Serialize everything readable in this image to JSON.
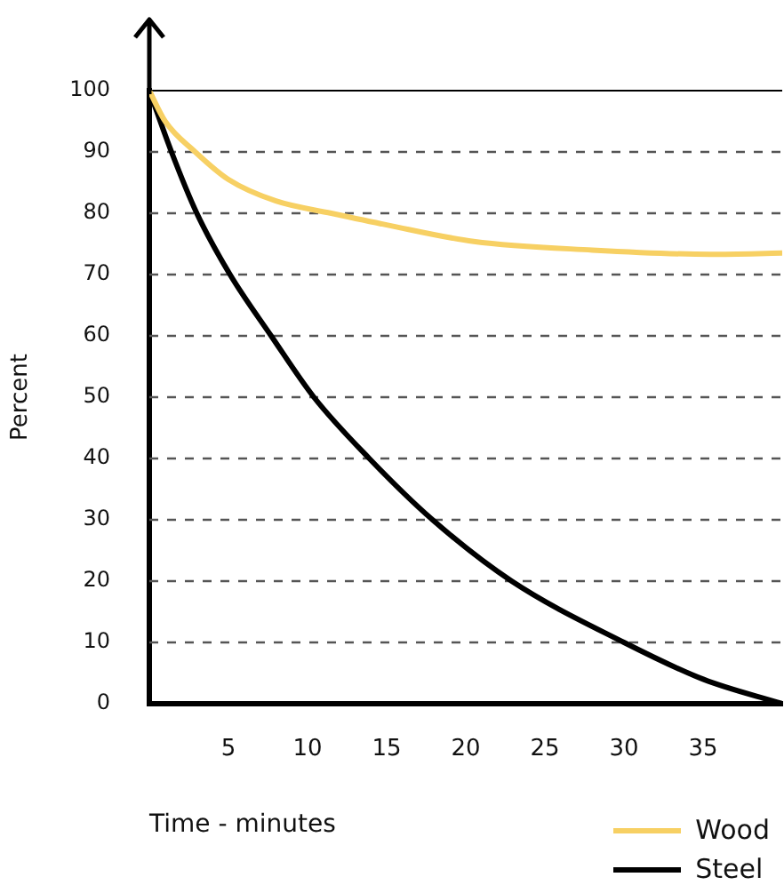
{
  "chart_data": {
    "type": "line",
    "xlabel": "Time - minutes",
    "ylabel": "Percent",
    "xlim": [
      0,
      40
    ],
    "xticks": [
      5,
      10,
      15,
      20,
      25,
      30,
      35
    ],
    "ylim": [
      0,
      100
    ],
    "yticks": [
      0,
      10,
      20,
      30,
      40,
      50,
      60,
      70,
      80,
      90,
      100
    ],
    "grid": "y",
    "legend": "bottom right",
    "marker": "none",
    "line_style": "solid",
    "series": [
      {
        "name": "Wood",
        "color": "#f7d063",
        "x": [
          0,
          1,
          2.9,
          5,
          8,
          11.5,
          15,
          20.5,
          28,
          35.5,
          40
        ],
        "values": [
          100,
          95,
          90,
          85.5,
          82,
          80,
          78.1,
          75.4,
          74,
          73.3,
          73.5
        ]
      },
      {
        "name": "Steel",
        "color": "#000000",
        "x": [
          0,
          1.4,
          3,
          5.1,
          7.7,
          10.4,
          13.9,
          17.9,
          22.9,
          30,
          35,
          40
        ],
        "values": [
          100,
          90,
          80,
          70,
          60,
          50,
          40,
          30,
          20,
          10,
          4,
          0
        ]
      }
    ]
  }
}
